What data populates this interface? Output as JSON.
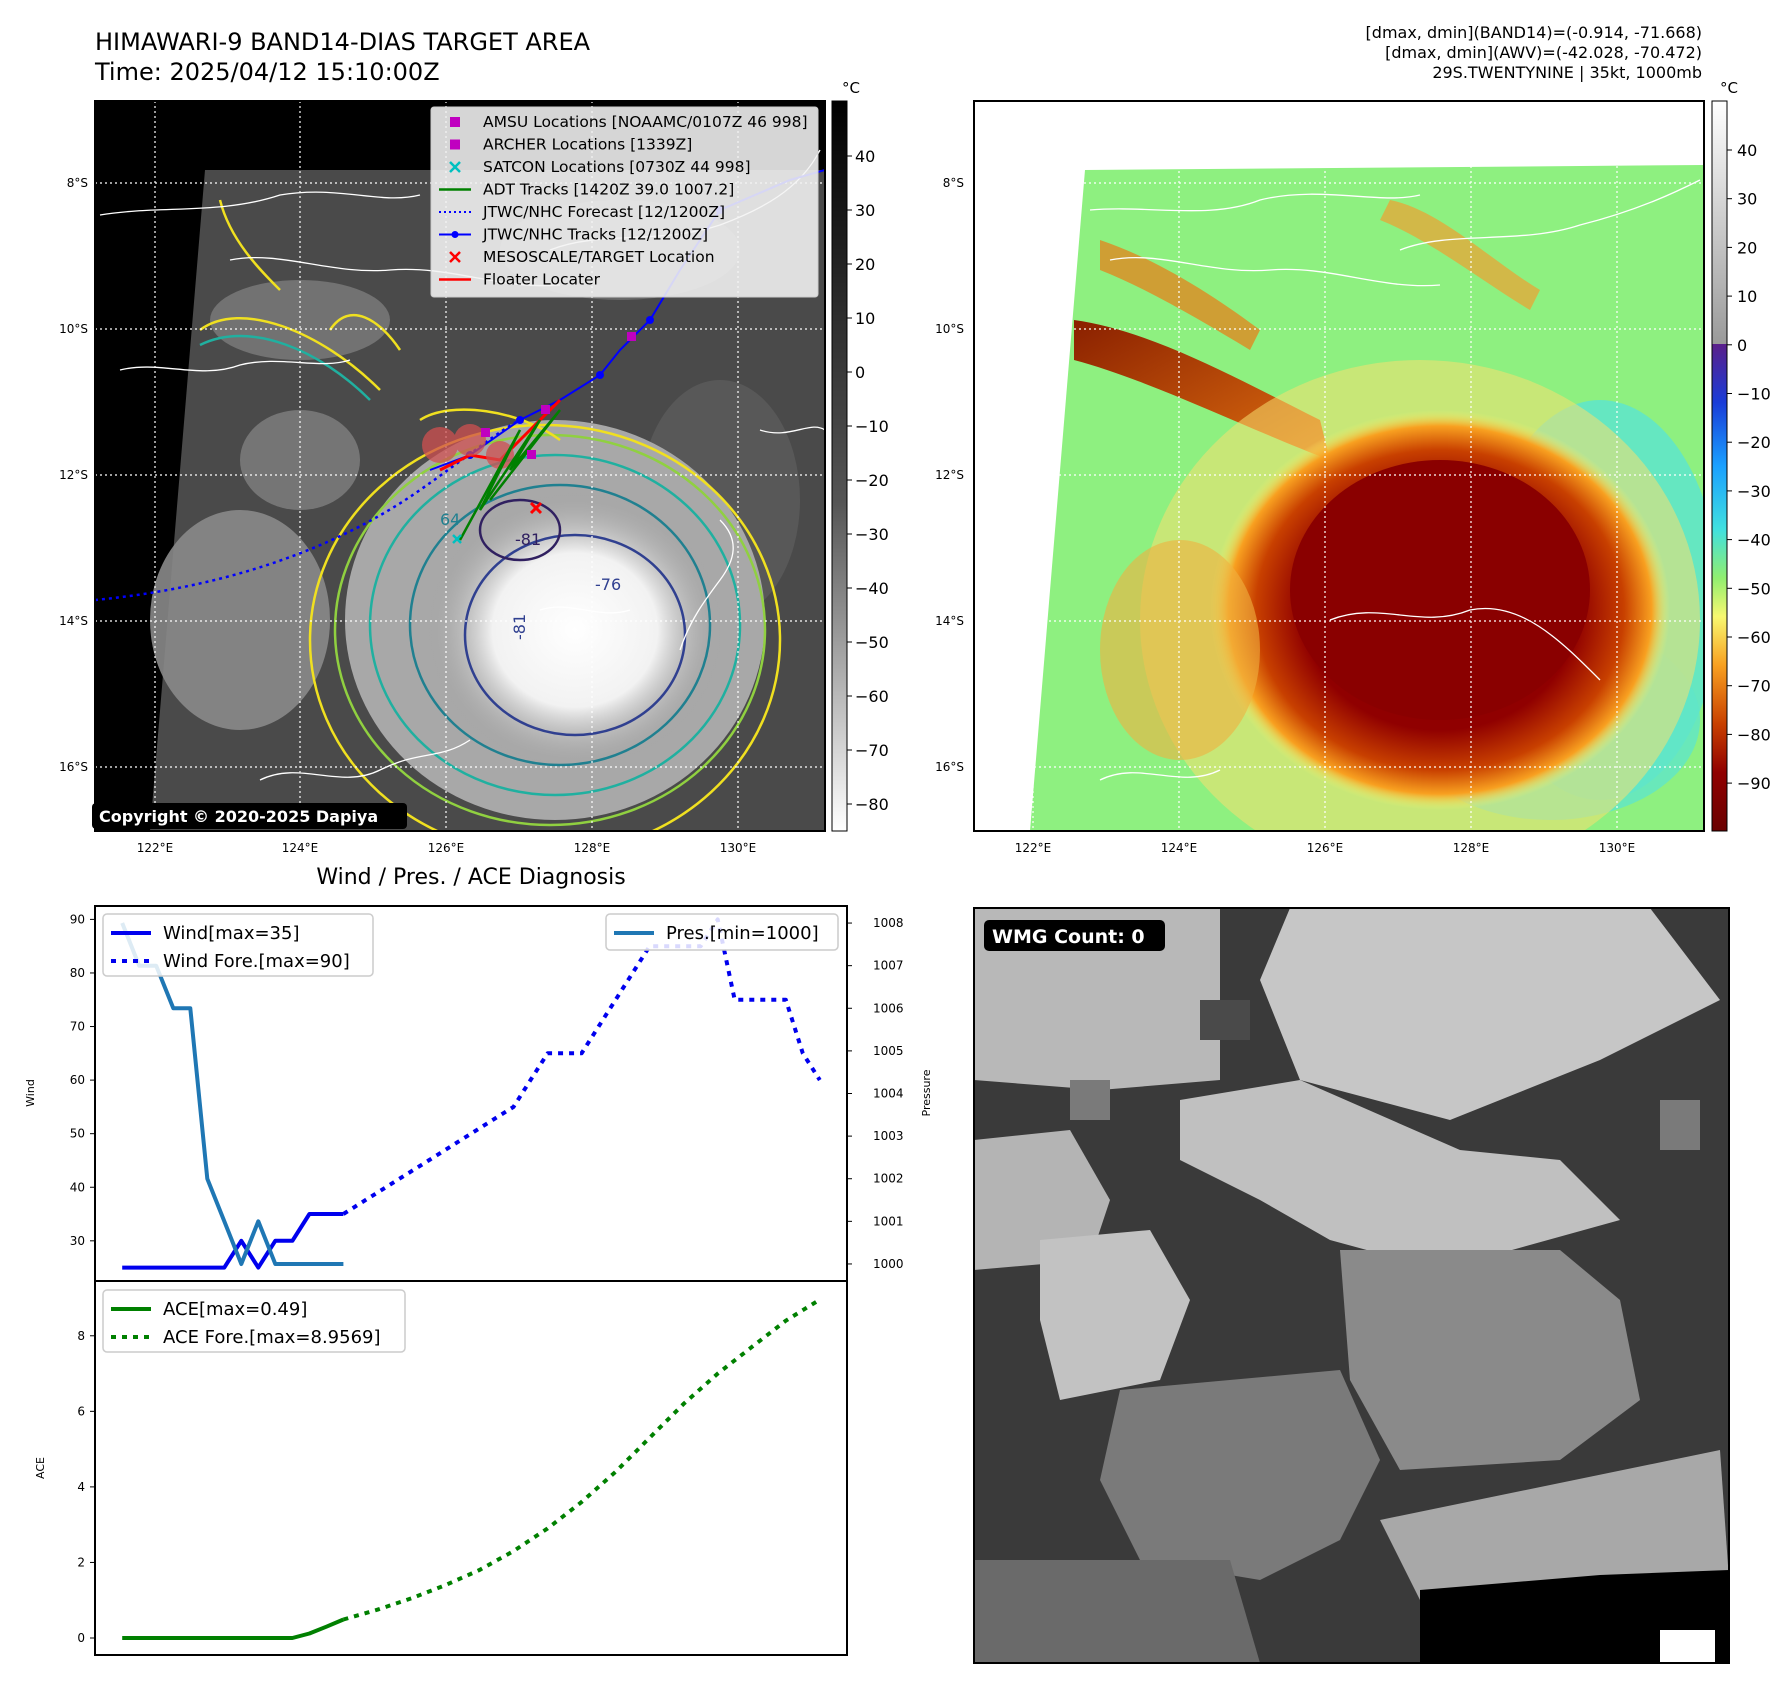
{
  "map_panel": {
    "title_line1": "HIMAWARI-9 BAND14-DIAS TARGET AREA",
    "title_line2": "Time: 2025/04/12 15:10:00Z",
    "copyright": "Copyright © 2020-2025 Dapiya",
    "colorbar_unit": "°C",
    "colorbar_ticks": [
      40,
      30,
      20,
      10,
      0,
      -10,
      -20,
      -30,
      -40,
      -50,
      -60,
      -70,
      -80
    ],
    "lat_labels": [
      "8°S",
      "10°S",
      "12°S",
      "14°S",
      "16°S"
    ],
    "lon_labels": [
      "122°E",
      "124°E",
      "126°E",
      "128°E",
      "130°E"
    ],
    "contour_labels": [
      "64",
      "-76",
      "-81",
      "-81"
    ],
    "legend": [
      {
        "label": "AMSU Locations [NOAAMC/0107Z 46 998]",
        "color": "#c000c0",
        "marker": "square"
      },
      {
        "label": "ARCHER Locations [1339Z]",
        "color": "#c000c0",
        "marker": "square"
      },
      {
        "label": "SATCON Locations [0730Z 44 998]",
        "color": "#00c0c0",
        "marker": "x"
      },
      {
        "label": "ADT Tracks [1420Z 39.0 1007.2]",
        "color": "#008000",
        "marker": "line"
      },
      {
        "label": "JTWC/NHC Forecast [12/1200Z]",
        "color": "#0000ff",
        "marker": "dotted"
      },
      {
        "label": "JTWC/NHC Tracks [12/1200Z]",
        "color": "#0000ff",
        "marker": "line-dot"
      },
      {
        "label": "MESOSCALE/TARGET Location",
        "color": "#ff0000",
        "marker": "x"
      },
      {
        "label": "Floater Locater",
        "color": "#ff0000",
        "marker": "line"
      }
    ]
  },
  "awv_panel": {
    "info_line1": "[dmax, dmin](BAND14)=(-0.914, -71.668)",
    "info_line2": "[dmax, dmin](AWV)=(-42.028, -70.472)",
    "info_line3": "29S.TWENTYNINE | 35kt, 1000mb",
    "colorbar_unit": "°C",
    "colorbar_ticks": [
      40,
      30,
      20,
      10,
      0,
      -10,
      -20,
      -30,
      -40,
      -50,
      -60,
      -70,
      -80,
      -90
    ],
    "lat_labels": [
      "8°S",
      "10°S",
      "12°S",
      "14°S",
      "16°S"
    ],
    "lon_labels": [
      "122°E",
      "124°E",
      "126°E",
      "128°E",
      "130°E"
    ]
  },
  "wmg_panel": {
    "badge": "WMG Count: 0"
  },
  "chart_data": [
    {
      "type": "line",
      "title": "Wind / Pres. / ACE Diagnosis",
      "ylabel": "Wind",
      "ylabel_right": "Pressure",
      "ylim": [
        22.5,
        92.5
      ],
      "ylim_right": [
        999.6,
        1008.4
      ],
      "yticks": [
        30,
        40,
        50,
        60,
        70,
        80,
        90
      ],
      "yticks_right": [
        1000,
        1001,
        1002,
        1003,
        1004,
        1005,
        1006,
        1007,
        1008
      ],
      "series": [
        {
          "name": "Wind[max=35]",
          "axis": "left",
          "style": "solid",
          "color": "#0000ee",
          "x": [
            0,
            1,
            2,
            3,
            4,
            5,
            6,
            7,
            8,
            9,
            10,
            11,
            12,
            13
          ],
          "values": [
            25,
            25,
            25,
            25,
            25,
            25,
            25,
            30,
            25,
            30,
            30,
            35,
            35,
            35
          ]
        },
        {
          "name": "Wind Fore.[max=90]",
          "axis": "left",
          "style": "dotted",
          "color": "#0000ee",
          "x": [
            13,
            14,
            15,
            16,
            17,
            18,
            19,
            20,
            21,
            22,
            23,
            24,
            25,
            26,
            27,
            28,
            29,
            30,
            31,
            32,
            33,
            34,
            35,
            36,
            37,
            38,
            39,
            40,
            41
          ],
          "values": [
            35,
            37,
            39,
            41,
            43,
            45,
            47,
            49,
            51,
            53,
            55,
            60,
            65,
            65,
            65,
            70,
            75,
            80,
            85,
            85,
            85,
            85,
            90,
            75,
            75,
            75,
            75,
            65,
            60
          ]
        },
        {
          "name": "Pres.[min=1000]",
          "axis": "right",
          "style": "solid",
          "color": "#1f77b4",
          "x": [
            0,
            1,
            2,
            3,
            4,
            5,
            6,
            7,
            8,
            9,
            10,
            11,
            12,
            13
          ],
          "values": [
            1008,
            1007,
            1007,
            1006,
            1006,
            1002,
            1001,
            1000,
            1001,
            1000,
            1000,
            1000,
            1000,
            1000
          ]
        }
      ]
    },
    {
      "type": "line",
      "ylabel": "ACE",
      "ylim": [
        -0.45,
        9.45
      ],
      "yticks": [
        0,
        2,
        4,
        6,
        8
      ],
      "series": [
        {
          "name": "ACE[max=0.49]",
          "style": "solid",
          "color": "#008000",
          "x": [
            0,
            1,
            2,
            3,
            4,
            5,
            6,
            7,
            8,
            9,
            10,
            11,
            12,
            13
          ],
          "values": [
            0,
            0,
            0,
            0,
            0,
            0,
            0,
            0,
            0,
            0,
            0,
            0.12,
            0.3,
            0.49
          ]
        },
        {
          "name": "ACE Fore.[max=8.9569]",
          "style": "dotted",
          "color": "#008000",
          "x": [
            13,
            15,
            17,
            19,
            21,
            23,
            25,
            27,
            29,
            31,
            33,
            35,
            37,
            39,
            41
          ],
          "values": [
            0.49,
            0.75,
            1.05,
            1.4,
            1.8,
            2.3,
            2.9,
            3.6,
            4.4,
            5.3,
            6.2,
            7.0,
            7.7,
            8.4,
            8.9569
          ]
        }
      ]
    }
  ]
}
